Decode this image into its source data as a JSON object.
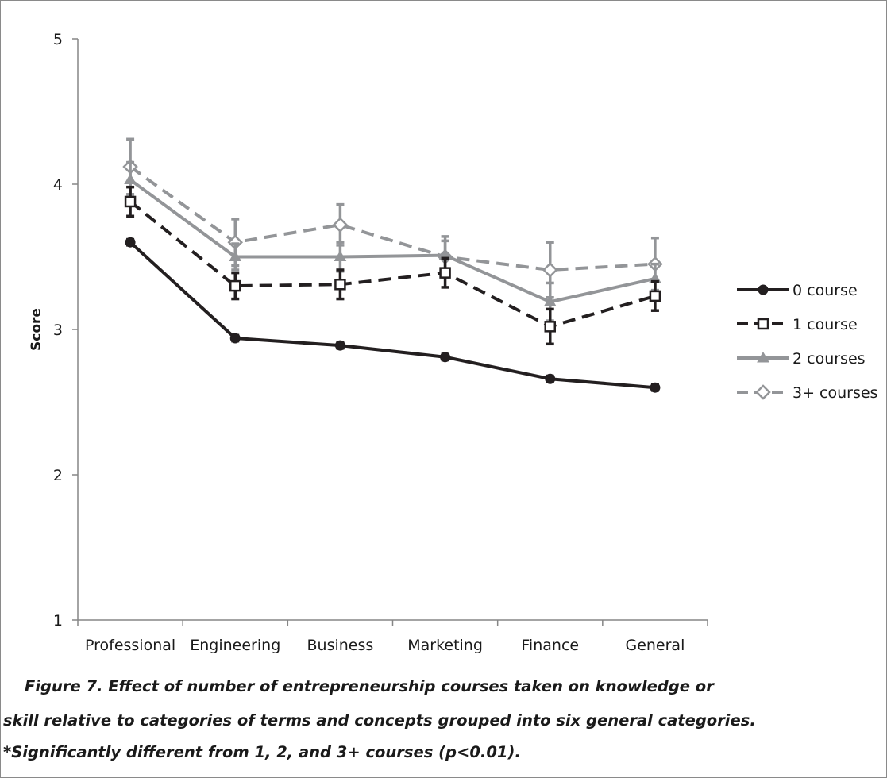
{
  "chart_data": {
    "type": "line",
    "ylabel": "Score",
    "xlabel": "",
    "ylim": [
      1,
      5
    ],
    "yticks": [
      "1",
      "2",
      "3",
      "4",
      "5"
    ],
    "categories": [
      "Professional",
      "Engineering",
      "Business",
      "Marketing",
      "Finance",
      "General"
    ],
    "legend_position": "right",
    "series": [
      {
        "name": "0 course",
        "values": [
          3.6,
          2.94,
          2.89,
          2.81,
          2.66,
          2.6
        ],
        "errors": [
          0.02,
          0.02,
          0.02,
          0.02,
          0.02,
          0.02
        ],
        "color": "#231f20",
        "dash": "solid",
        "marker": "circle-filled"
      },
      {
        "name": "1 course",
        "values": [
          3.88,
          3.3,
          3.31,
          3.39,
          3.02,
          3.23
        ],
        "errors": [
          0.1,
          0.09,
          0.1,
          0.1,
          0.12,
          0.1
        ],
        "color": "#231f20",
        "dash": "dashed",
        "marker": "square-open"
      },
      {
        "name": "2 courses",
        "values": [
          4.03,
          3.5,
          3.5,
          3.51,
          3.19,
          3.35
        ],
        "errors": [
          0.12,
          0.09,
          0.1,
          0.1,
          0.13,
          0.1
        ],
        "color": "#939598",
        "dash": "solid",
        "marker": "triangle-filled"
      },
      {
        "name": "3+ courses",
        "values": [
          4.12,
          3.6,
          3.72,
          3.5,
          3.41,
          3.45
        ],
        "errors": [
          0.19,
          0.16,
          0.14,
          0.14,
          0.19,
          0.18
        ],
        "color": "#939598",
        "dash": "dashed",
        "marker": "diamond-open"
      }
    ]
  },
  "caption": {
    "line1": "Figure 7. Effect of number of entrepreneurship courses taken on knowledge or",
    "line2": "skill relative to categories of terms and concepts grouped into six general categories.",
    "line3": "*Significantly different from 1, 2, and 3+ courses (p<0.01)."
  }
}
